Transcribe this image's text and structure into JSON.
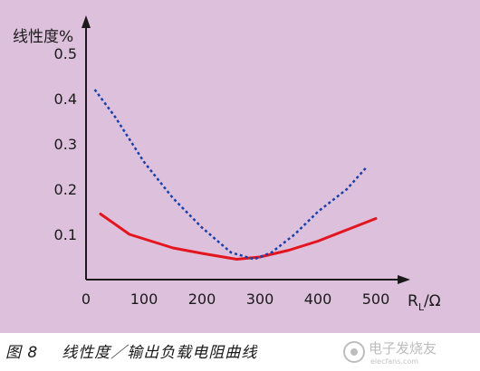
{
  "caption": {
    "figure_number": "图 8",
    "title": "线性度／输出负载电阻曲线"
  },
  "watermark": {
    "text": "电子发烧友",
    "domain": "elecfans.com"
  },
  "chart_data": {
    "type": "line",
    "title": "",
    "ylabel": "线性度%",
    "xlabel_main": "R",
    "xlabel_sub": "L",
    "xlabel_unit": "/Ω",
    "x_ticks": [
      "0",
      "100",
      "200",
      "300",
      "400",
      "500"
    ],
    "y_ticks": [
      "0.1",
      "0.2",
      "0.3",
      "0.4",
      "0.5"
    ],
    "xlim": [
      0,
      550
    ],
    "ylim": [
      0,
      0.57
    ],
    "grid": false,
    "legend": "none",
    "series": [
      {
        "style": "solid",
        "color": "#e3151f",
        "x": [
          25,
          75,
          150,
          200,
          260,
          300,
          350,
          400,
          450,
          500
        ],
        "y": [
          0.145,
          0.1,
          0.07,
          0.058,
          0.045,
          0.05,
          0.065,
          0.085,
          0.11,
          0.135
        ]
      },
      {
        "style": "dotted",
        "color": "#1a3fa8",
        "x": [
          15,
          50,
          100,
          150,
          200,
          250,
          290,
          320,
          360,
          400,
          450,
          485
        ],
        "y": [
          0.42,
          0.36,
          0.26,
          0.18,
          0.115,
          0.06,
          0.045,
          0.06,
          0.1,
          0.15,
          0.2,
          0.25
        ]
      }
    ]
  }
}
